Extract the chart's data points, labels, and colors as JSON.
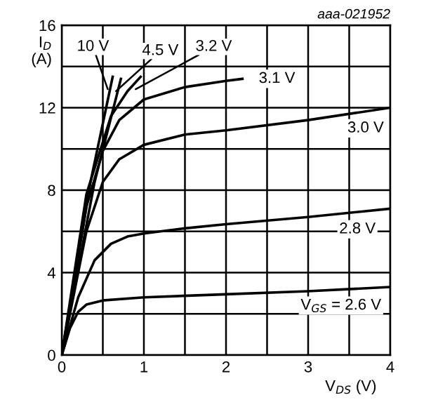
{
  "chart_data": {
    "type": "line",
    "xlabel": "V$_{DS}$ (V)",
    "ylabel": "I$_{D}$\n(A)",
    "annotations": [
      "aaa-021952"
    ],
    "xlim": [
      0,
      4
    ],
    "ylim": [
      0,
      16
    ],
    "xticks": [
      0,
      {
        "value": 0.5,
        "label": null
      },
      1,
      {
        "value": 1.5,
        "label": null
      },
      2,
      {
        "value": 2.5,
        "label": null
      },
      3,
      {
        "value": 3.5,
        "label": null
      },
      4
    ],
    "yticks": [
      0,
      {
        "value": 2,
        "label": null
      },
      4,
      {
        "value": 6,
        "label": null
      },
      8,
      {
        "value": 10,
        "label": null
      },
      12,
      {
        "value": 14,
        "label": null
      },
      16
    ],
    "grid": true,
    "marker": "none",
    "line_style": "solid",
    "series": [
      {
        "name": "10 V",
        "color": "#000000",
        "x": [
          0,
          0.35,
          0.62
        ],
        "values": [
          0,
          8.4,
          13.5
        ]
      },
      {
        "name": "4.5 V",
        "color": "#000000",
        "x": [
          0,
          0.4,
          0.72
        ],
        "values": [
          0,
          8.4,
          13.4
        ]
      },
      {
        "name": "3.2 V",
        "color": "#000000",
        "x": [
          0,
          0.3,
          0.6,
          0.8,
          0.96
        ],
        "values": [
          0,
          7.8,
          11.6,
          12.8,
          13.5
        ]
      },
      {
        "name": "3.1 V",
        "color": "#000000",
        "x": [
          0,
          0.3,
          0.5,
          0.7,
          1,
          1.5,
          2,
          2.2
        ],
        "values": [
          0,
          7.2,
          9.9,
          11.4,
          12.4,
          13.0,
          13.3,
          13.4
        ]
      },
      {
        "name": "3.0 V",
        "color": "#000000",
        "x": [
          0,
          0.3,
          0.5,
          0.7,
          1,
          1.5,
          2,
          3,
          4
        ],
        "values": [
          0,
          6,
          8.4,
          9.5,
          10.2,
          10.7,
          10.9,
          11.4,
          12
        ]
      },
      {
        "name": "2.8 V",
        "color": "#000000",
        "x": [
          0,
          0.2,
          0.4,
          0.6,
          0.8,
          1,
          1.5,
          2,
          3,
          4
        ],
        "values": [
          0,
          2.8,
          4.6,
          5.4,
          5.75,
          5.9,
          6.15,
          6.35,
          6.7,
          7.1
        ]
      },
      {
        "name": "V$_{GS}$ = 2.6 V",
        "color": "#000000",
        "x": [
          0,
          0.1,
          0.2,
          0.3,
          0.5,
          1,
          2,
          3,
          4
        ],
        "values": [
          0,
          1.3,
          2.1,
          2.45,
          2.65,
          2.8,
          2.95,
          3.1,
          3.3
        ]
      }
    ]
  }
}
